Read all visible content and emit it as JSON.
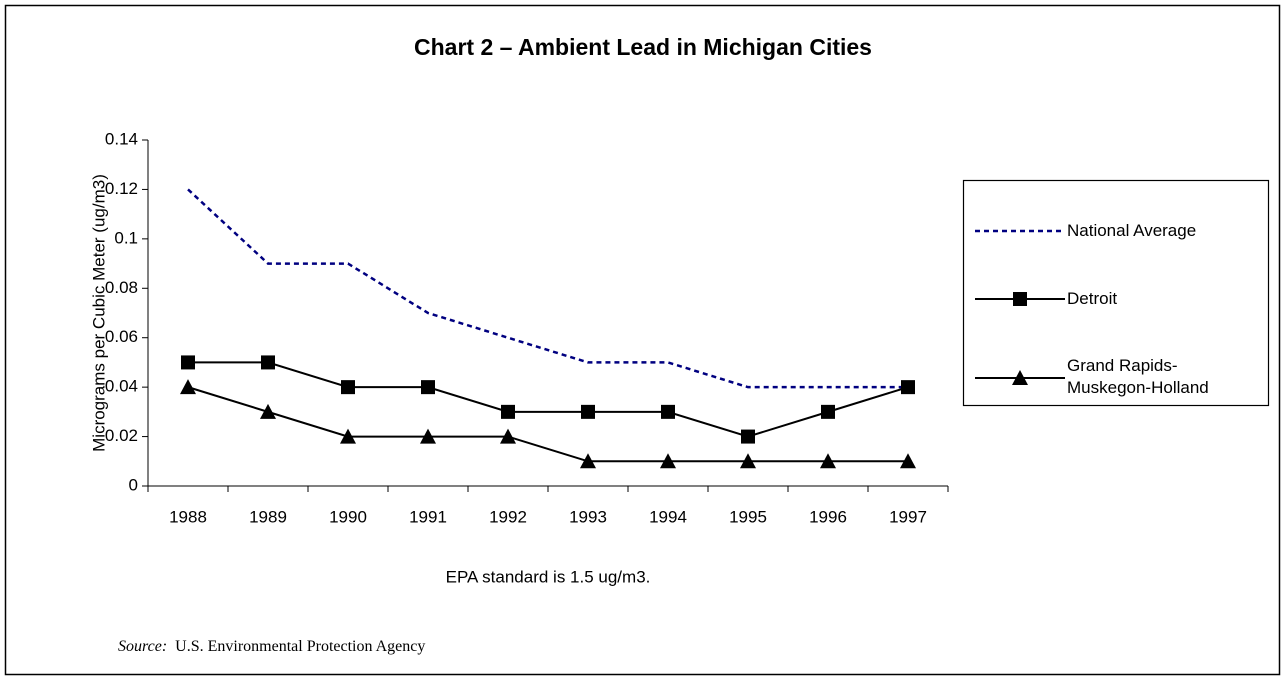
{
  "chart_data": {
    "type": "line",
    "title": "Chart 2 – Ambient Lead in Michigan Cities",
    "y_label": "Micrograms per Cubic Meter (ug/m3)",
    "annotation": "EPA standard is 1.5 ug/m3.",
    "source_label": "Source:",
    "source": "U.S. Environmental Protection Agency",
    "categories": [
      "1988",
      "1989",
      "1990",
      "1991",
      "1992",
      "1993",
      "1994",
      "1995",
      "1996",
      "1997"
    ],
    "series": [
      {
        "name": "National Average",
        "color": "#000080",
        "dash": true,
        "marker": "none",
        "values": [
          0.12,
          0.09,
          0.09,
          0.07,
          0.06,
          0.05,
          0.05,
          0.04,
          0.04,
          0.04
        ]
      },
      {
        "name": "Detroit",
        "color": "#000000",
        "dash": false,
        "marker": "square",
        "values": [
          0.05,
          0.05,
          0.04,
          0.04,
          0.03,
          0.03,
          0.03,
          0.02,
          0.03,
          0.04
        ]
      },
      {
        "name": "Grand Rapids-Muskegon-Holland",
        "color": "#000000",
        "dash": false,
        "marker": "triangle",
        "values": [
          0.04,
          0.03,
          0.02,
          0.02,
          0.02,
          0.01,
          0.01,
          0.01,
          0.01,
          0.01
        ]
      }
    ],
    "ylim": [
      0,
      0.14
    ],
    "yticks": [
      0,
      0.02,
      0.04,
      0.06,
      0.08,
      0.1,
      0.12,
      0.14
    ],
    "grid": false,
    "legend": "right"
  }
}
